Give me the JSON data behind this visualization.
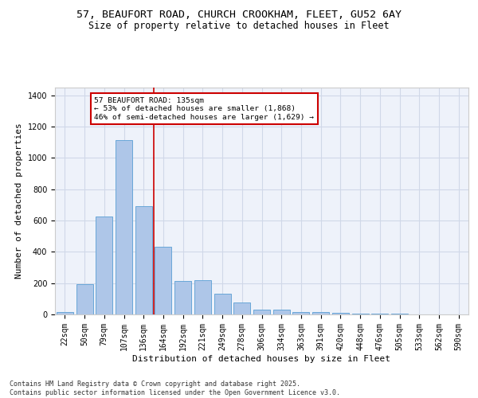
{
  "title_line1": "57, BEAUFORT ROAD, CHURCH CROOKHAM, FLEET, GU52 6AY",
  "title_line2": "Size of property relative to detached houses in Fleet",
  "xlabel": "Distribution of detached houses by size in Fleet",
  "ylabel": "Number of detached properties",
  "categories": [
    "22sqm",
    "50sqm",
    "79sqm",
    "107sqm",
    "136sqm",
    "164sqm",
    "192sqm",
    "221sqm",
    "249sqm",
    "278sqm",
    "306sqm",
    "334sqm",
    "363sqm",
    "391sqm",
    "420sqm",
    "448sqm",
    "476sqm",
    "505sqm",
    "533sqm",
    "562sqm",
    "590sqm"
  ],
  "values": [
    15,
    195,
    625,
    1115,
    690,
    430,
    215,
    220,
    130,
    75,
    30,
    30,
    15,
    15,
    10,
    5,
    5,
    5,
    2,
    2,
    2
  ],
  "bar_color": "#aec6e8",
  "bar_edge_color": "#5a9fd4",
  "vline_index": 4,
  "annotation_text": "57 BEAUFORT ROAD: 135sqm\n← 53% of detached houses are smaller (1,868)\n46% of semi-detached houses are larger (1,629) →",
  "annotation_box_color": "#ffffff",
  "annotation_box_edge": "#cc0000",
  "vline_color": "#cc0000",
  "grid_color": "#d0d8e8",
  "bg_color": "#eef2fa",
  "footer": "Contains HM Land Registry data © Crown copyright and database right 2025.\nContains public sector information licensed under the Open Government Licence v3.0.",
  "ylim": [
    0,
    1450
  ],
  "title_fontsize": 9.5,
  "subtitle_fontsize": 8.5,
  "axis_label_fontsize": 8,
  "tick_fontsize": 7,
  "footer_fontsize": 6
}
